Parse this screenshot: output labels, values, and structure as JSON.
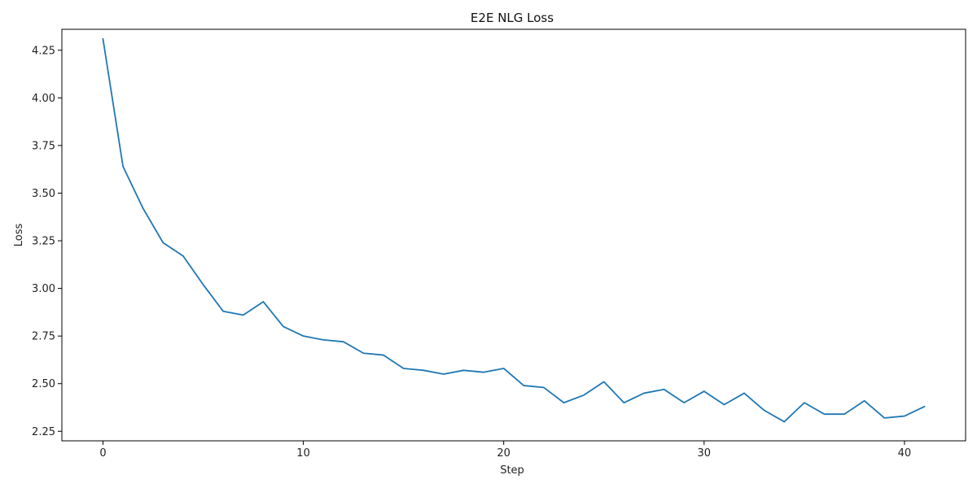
{
  "chart_data": {
    "type": "line",
    "title": "E2E NLG Loss",
    "xlabel": "Step",
    "ylabel": "Loss",
    "xlim": [
      -2.05,
      43.05
    ],
    "ylim": [
      2.2,
      4.36
    ],
    "x_ticks": [
      0,
      10,
      20,
      30,
      40
    ],
    "y_ticks": [
      2.25,
      2.5,
      2.75,
      3.0,
      3.25,
      3.5,
      3.75,
      4.0,
      4.25
    ],
    "grid": false,
    "series": [
      {
        "color": "#1f77b4",
        "x": [
          0,
          1,
          2,
          3,
          4,
          5,
          6,
          7,
          8,
          9,
          10,
          11,
          12,
          13,
          14,
          15,
          16,
          17,
          18,
          19,
          20,
          21,
          22,
          23,
          24,
          25,
          26,
          27,
          28,
          29,
          30,
          31,
          32,
          33,
          34,
          35,
          36,
          37,
          38,
          39,
          40,
          41
        ],
        "y": [
          4.31,
          3.64,
          3.42,
          3.24,
          3.17,
          3.02,
          2.88,
          2.86,
          2.93,
          2.8,
          2.75,
          2.73,
          2.72,
          2.66,
          2.65,
          2.58,
          2.57,
          2.55,
          2.57,
          2.56,
          2.58,
          2.49,
          2.48,
          2.4,
          2.44,
          2.51,
          2.4,
          2.45,
          2.47,
          2.4,
          2.46,
          2.39,
          2.45,
          2.36,
          2.3,
          2.4,
          2.34,
          2.34,
          2.41,
          2.32,
          2.33,
          2.38
        ]
      }
    ]
  }
}
